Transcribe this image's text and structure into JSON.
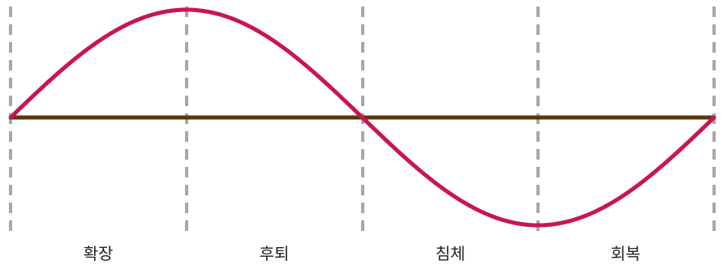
{
  "diagram": {
    "phases": [
      {
        "label": "확장"
      },
      {
        "label": "후퇴"
      },
      {
        "label": "침체"
      },
      {
        "label": "회복"
      }
    ],
    "colors": {
      "wave": "#c8174f",
      "baseline": "#5a3410",
      "divider": "#a8a8a8",
      "label": "#222222"
    }
  }
}
